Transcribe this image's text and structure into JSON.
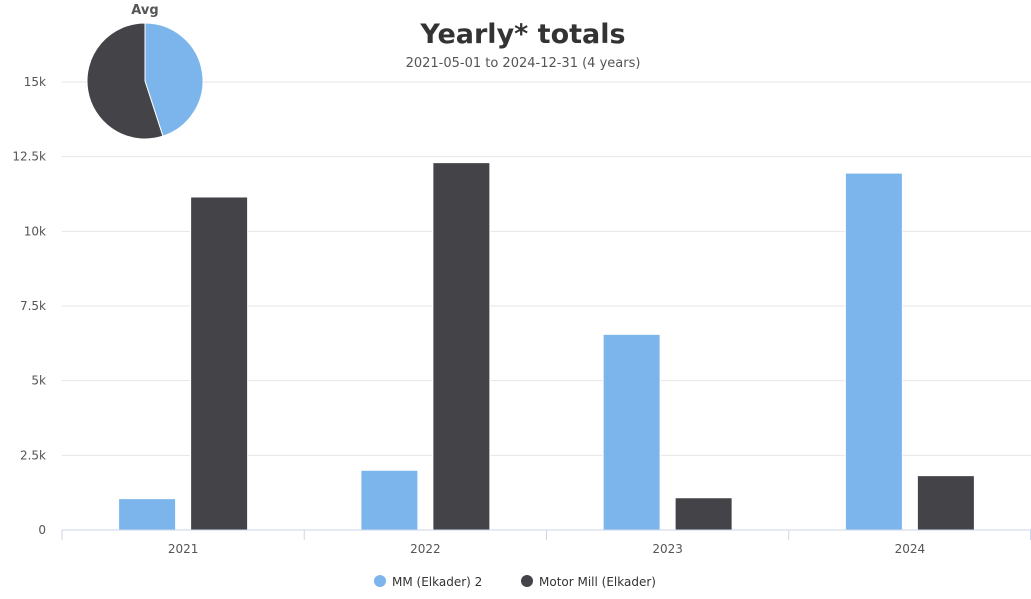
{
  "chart_data": {
    "type": "bar",
    "title": "Yearly* totals",
    "subtitle": "2021-05-01 to 2024-12-31 (4 years)",
    "categories": [
      "2021",
      "2022",
      "2023",
      "2024"
    ],
    "series": [
      {
        "name": "MM (Elkader) 2",
        "color": "#7cb5ec",
        "values": [
          1050,
          2000,
          6550,
          11950
        ]
      },
      {
        "name": "Motor Mill (Elkader)",
        "color": "#434348",
        "values": [
          11150,
          12300,
          1080,
          1820
        ]
      }
    ],
    "ylim": [
      0,
      15000
    ],
    "yticks": [
      0,
      2500,
      5000,
      7500,
      10000,
      12500,
      15000
    ],
    "ytick_labels": [
      "0",
      "2.5k",
      "5k",
      "7.5k",
      "10k",
      "12.5k",
      "15k"
    ],
    "grid": true,
    "legend_position": "bottom",
    "inset_pie": {
      "title": "Avg",
      "values": [
        45,
        55
      ]
    }
  }
}
